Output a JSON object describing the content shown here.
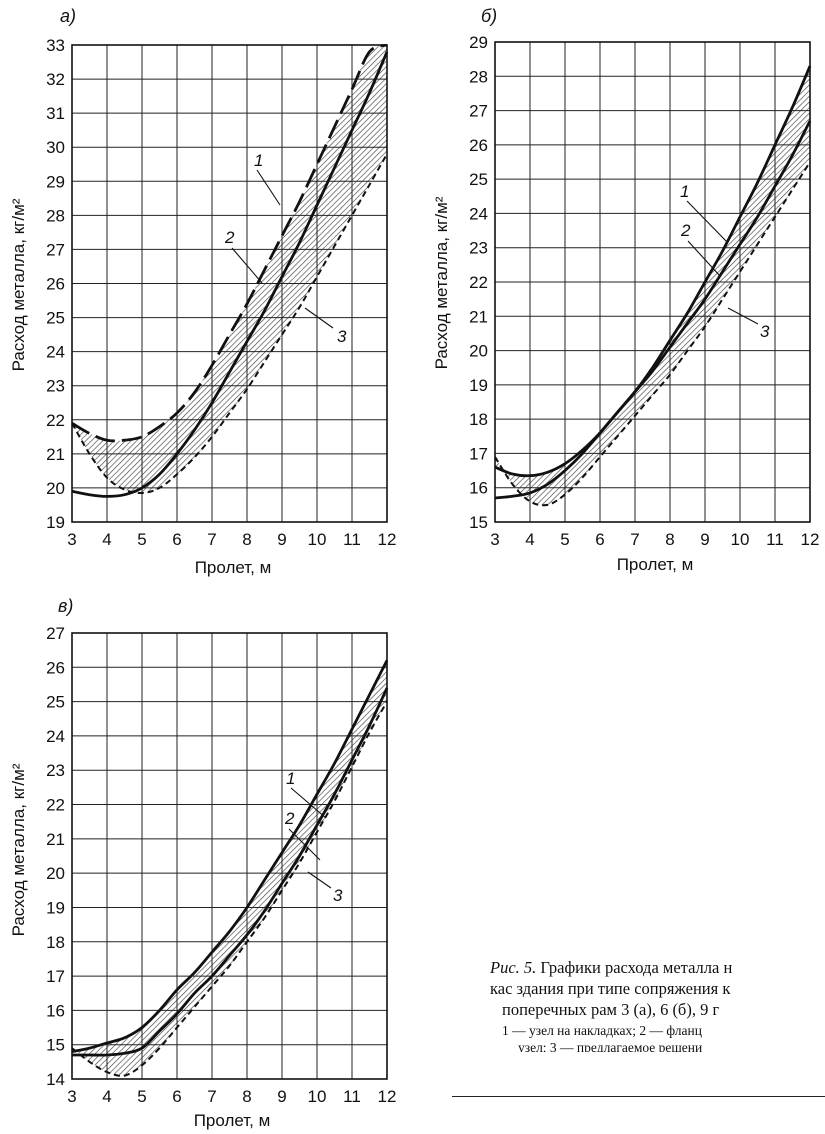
{
  "chart_data": [
    {
      "type": "line",
      "panel_label": "а)",
      "xlabel": "Пролет, м",
      "ylabel": "Расход металла, кг/м²",
      "xlim": [
        3,
        12
      ],
      "ylim": [
        19,
        33
      ],
      "xticks": [
        3,
        4,
        5,
        6,
        7,
        8,
        9,
        10,
        11,
        12
      ],
      "yticks": [
        19,
        20,
        21,
        22,
        23,
        24,
        25,
        26,
        27,
        28,
        29,
        30,
        31,
        32,
        33
      ],
      "grid": true,
      "series": [
        {
          "name": "1",
          "style": "solid",
          "x": [
            3,
            3.5,
            4,
            4.5,
            5,
            5.5,
            6,
            6.5,
            7,
            7.5,
            8,
            8.5,
            9,
            9.5,
            10,
            10.5,
            11,
            11.5,
            12
          ],
          "y": [
            19.9,
            19.8,
            19.75,
            19.8,
            20.0,
            20.4,
            21.0,
            21.7,
            22.5,
            23.4,
            24.3,
            25.2,
            26.2,
            27.2,
            28.3,
            29.4,
            30.5,
            31.6,
            32.8
          ]
        },
        {
          "name": "2",
          "style": "long-dash",
          "x": [
            3,
            3.5,
            4,
            4.5,
            5,
            5.5,
            6,
            6.5,
            7,
            7.5,
            8,
            8.5,
            9,
            9.5,
            10,
            10.5,
            11,
            11.5,
            12
          ],
          "y": [
            21.9,
            21.6,
            21.4,
            21.4,
            21.5,
            21.8,
            22.2,
            22.8,
            23.6,
            24.5,
            25.4,
            26.4,
            27.4,
            28.4,
            29.5,
            30.6,
            31.7,
            32.8,
            33.0
          ]
        },
        {
          "name": "3",
          "style": "short-dash",
          "x": [
            3,
            3.5,
            4,
            4.5,
            5,
            5.5,
            6,
            6.5,
            7,
            7.5,
            8,
            8.5,
            9,
            9.5,
            10,
            10.5,
            11,
            11.5,
            12
          ],
          "y": [
            21.9,
            21.0,
            20.3,
            19.95,
            19.85,
            20.0,
            20.4,
            20.9,
            21.5,
            22.2,
            22.9,
            23.7,
            24.5,
            25.3,
            26.2,
            27.1,
            28.0,
            28.9,
            29.8
          ]
        }
      ],
      "labels": [
        "1",
        "2",
        "3"
      ]
    },
    {
      "type": "line",
      "panel_label": "б)",
      "xlabel": "Пролет, м",
      "ylabel": "Расход металла, кг/м²",
      "xlim": [
        3,
        12
      ],
      "ylim": [
        15,
        29
      ],
      "xticks": [
        3,
        4,
        5,
        6,
        7,
        8,
        9,
        10,
        11,
        12
      ],
      "yticks": [
        15,
        16,
        17,
        18,
        19,
        20,
        21,
        22,
        23,
        24,
        25,
        26,
        27,
        28,
        29
      ],
      "grid": true,
      "series": [
        {
          "name": "1",
          "style": "solid",
          "x": [
            3,
            3.5,
            4,
            4.5,
            5,
            5.5,
            6,
            6.5,
            7,
            7.5,
            8,
            8.5,
            9,
            9.5,
            10,
            10.5,
            11,
            11.5,
            12
          ],
          "y": [
            15.7,
            15.75,
            15.85,
            16.1,
            16.5,
            17.0,
            17.6,
            18.2,
            18.8,
            19.5,
            20.3,
            21.1,
            22.0,
            22.9,
            23.9,
            24.9,
            26.0,
            27.1,
            28.3
          ]
        },
        {
          "name": "2",
          "style": "solid",
          "x": [
            3,
            3.5,
            4,
            4.5,
            5,
            5.5,
            6,
            6.5,
            7,
            7.5,
            8,
            8.5,
            9,
            9.5,
            10,
            10.5,
            11,
            11.5,
            12
          ],
          "y": [
            16.6,
            16.4,
            16.35,
            16.45,
            16.7,
            17.1,
            17.6,
            18.2,
            18.8,
            19.4,
            20.1,
            20.8,
            21.5,
            22.3,
            23.1,
            23.9,
            24.8,
            25.7,
            26.7
          ]
        },
        {
          "name": "3",
          "style": "short-dash",
          "x": [
            3,
            3.5,
            4,
            4.5,
            5,
            5.5,
            6,
            6.5,
            7,
            7.5,
            8,
            8.5,
            9,
            9.5,
            10,
            10.5,
            11,
            11.5,
            12
          ],
          "y": [
            16.9,
            16.1,
            15.6,
            15.5,
            15.8,
            16.3,
            16.9,
            17.5,
            18.1,
            18.7,
            19.3,
            20.0,
            20.7,
            21.5,
            22.3,
            23.1,
            23.9,
            24.7,
            25.5
          ]
        }
      ],
      "labels": [
        "1",
        "2",
        "3"
      ]
    },
    {
      "type": "line",
      "panel_label": "в)",
      "xlabel": "Пролет, м",
      "ylabel": "Расход металла, кг/м²",
      "xlim": [
        3,
        12
      ],
      "ylim": [
        14,
        27
      ],
      "xticks": [
        3,
        4,
        5,
        6,
        7,
        8,
        9,
        10,
        11,
        12
      ],
      "yticks": [
        14,
        15,
        16,
        17,
        18,
        19,
        20,
        21,
        22,
        23,
        24,
        25,
        26,
        27
      ],
      "grid": true,
      "series": [
        {
          "name": "1",
          "style": "solid",
          "x": [
            3,
            3.5,
            4,
            4.5,
            5,
            5.5,
            6,
            6.5,
            7,
            7.5,
            8,
            8.5,
            9,
            9.5,
            10,
            10.5,
            11,
            11.5,
            12
          ],
          "y": [
            14.8,
            14.9,
            15.05,
            15.2,
            15.5,
            16.0,
            16.6,
            17.1,
            17.7,
            18.3,
            19.0,
            19.8,
            20.6,
            21.4,
            22.3,
            23.2,
            24.2,
            25.2,
            26.2
          ]
        },
        {
          "name": "2",
          "style": "solid",
          "x": [
            3,
            3.5,
            4,
            4.5,
            5,
            5.5,
            6,
            6.5,
            7,
            7.5,
            8,
            8.5,
            9,
            9.5,
            10,
            10.5,
            11,
            11.5,
            12
          ],
          "y": [
            14.7,
            14.7,
            14.7,
            14.75,
            14.9,
            15.4,
            15.9,
            16.5,
            17.0,
            17.6,
            18.2,
            18.9,
            19.7,
            20.5,
            21.4,
            22.3,
            23.3,
            24.3,
            25.4
          ]
        },
        {
          "name": "3",
          "style": "short-dash",
          "x": [
            3,
            3.5,
            4,
            4.5,
            5,
            5.5,
            6,
            6.5,
            7,
            7.5,
            8,
            8.5,
            9,
            9.5,
            10,
            10.5,
            11,
            11.5,
            12
          ],
          "y": [
            14.9,
            14.5,
            14.2,
            14.1,
            14.4,
            14.9,
            15.5,
            16.1,
            16.7,
            17.3,
            18.0,
            18.7,
            19.5,
            20.3,
            21.2,
            22.1,
            23.1,
            24.1,
            25.0
          ]
        }
      ],
      "labels": [
        "1",
        "2",
        "3"
      ]
    }
  ],
  "caption": {
    "line1_prefix": "Рис. 5.",
    "line1": " Графики расхода металла н",
    "line2": "кас здания при типе сопряжения к",
    "line3": "поперечных рам 3 (а), 6 (б), 9 г",
    "legend_line1": "1 — узел на накладках; 2 — фланц",
    "legend_line2": "узел; 3 — предлагаемое решени"
  },
  "colors": {
    "line": "#111111",
    "grid": "#222222",
    "hatch": "#444444",
    "background": "#ffffff"
  }
}
